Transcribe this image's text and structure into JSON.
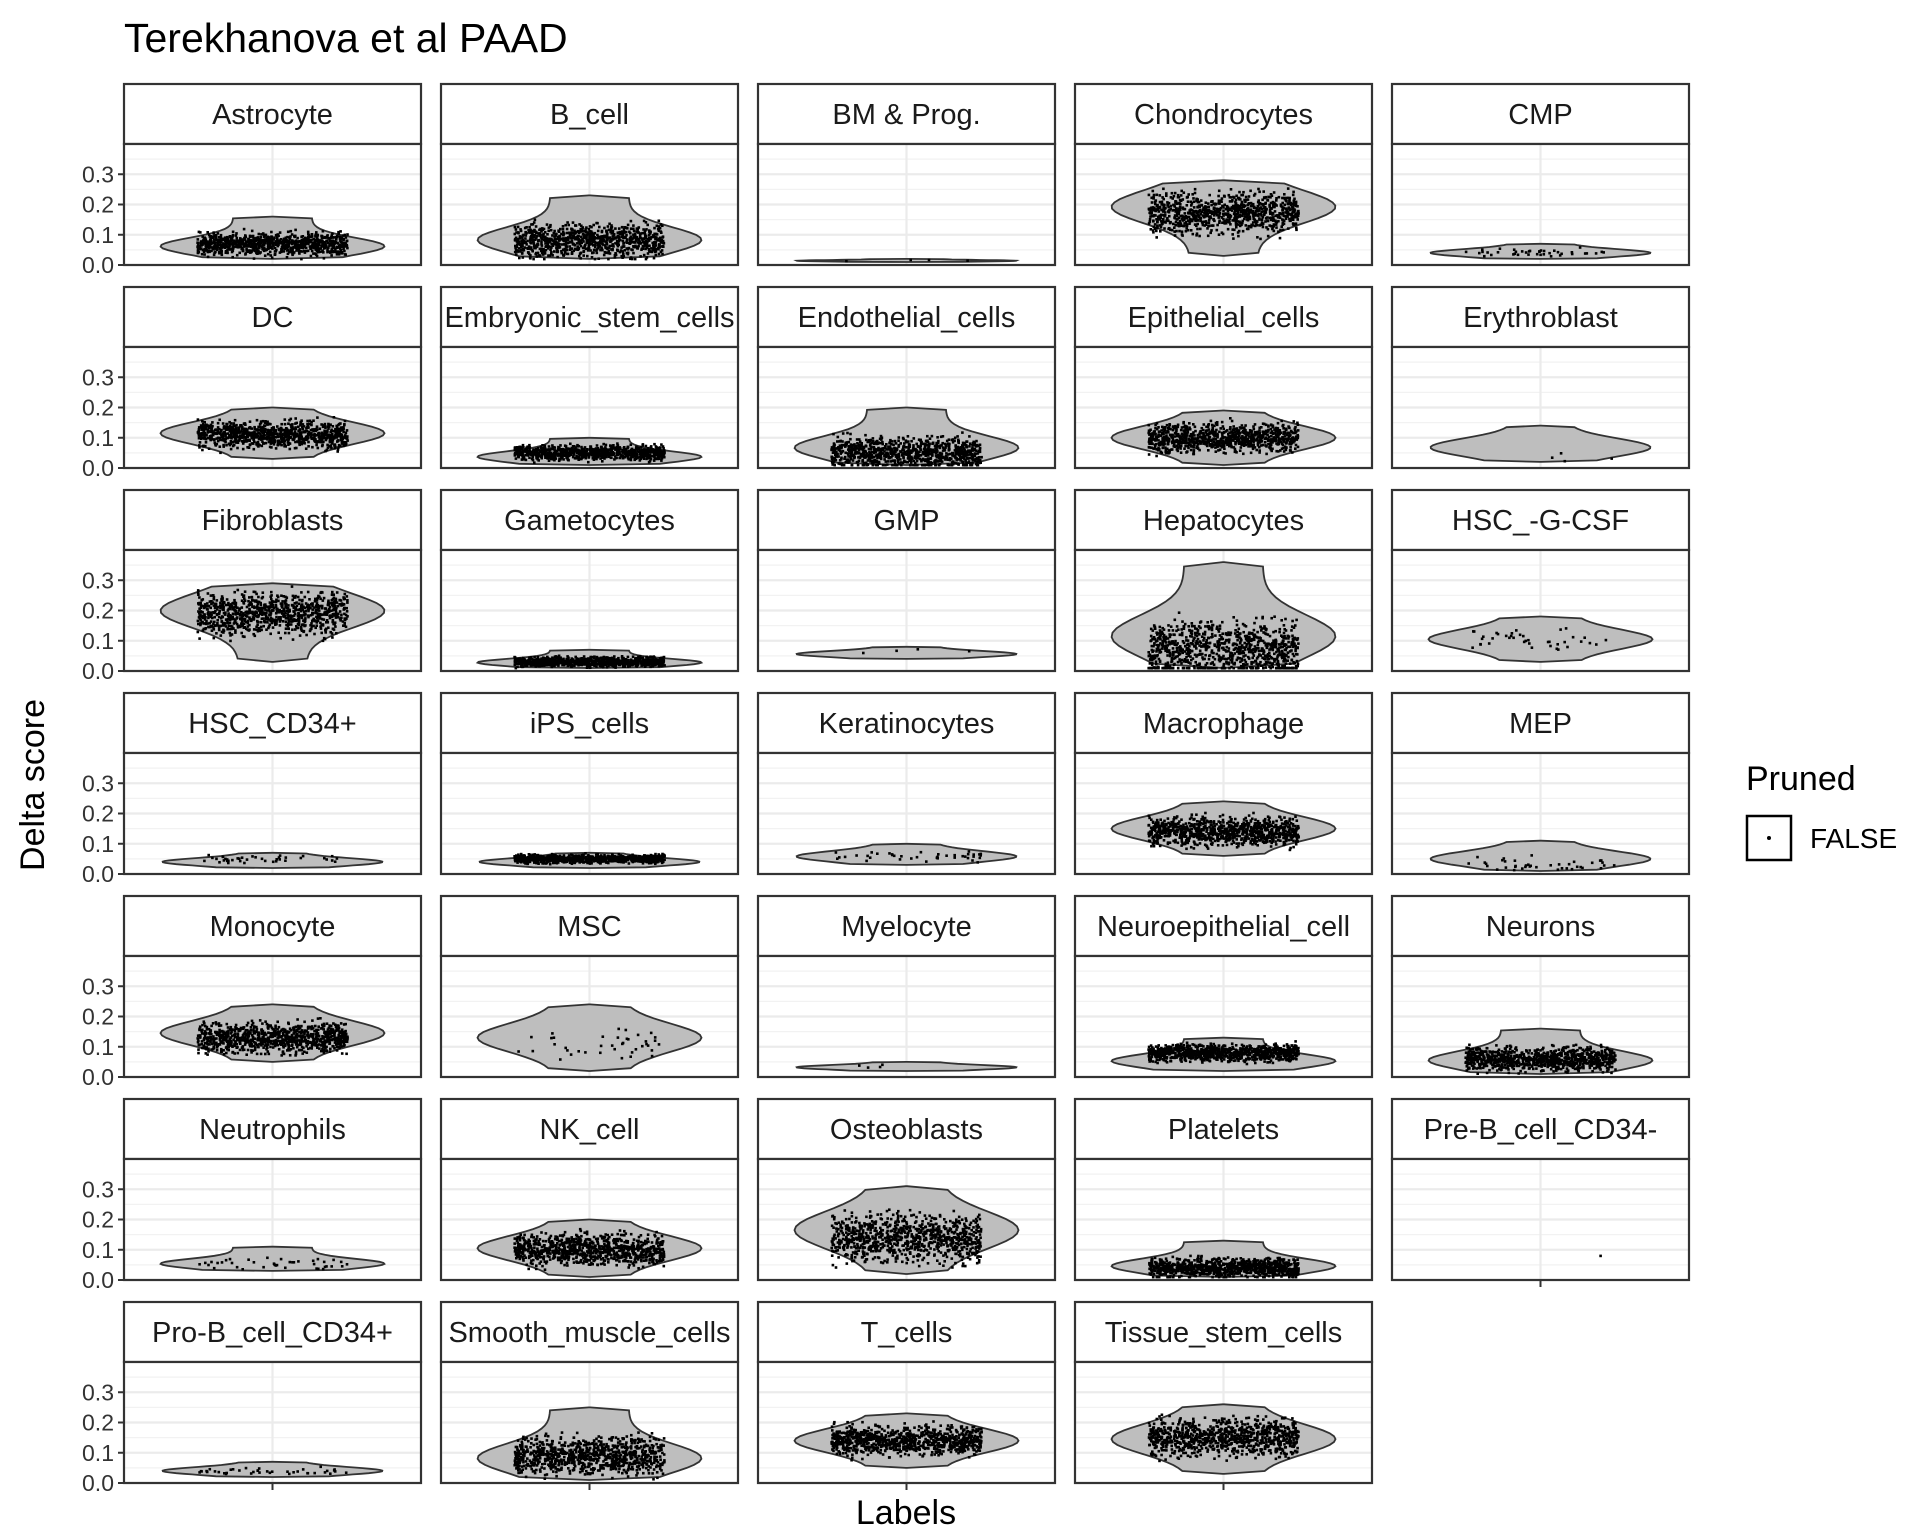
{
  "chart_data": {
    "type": "violin",
    "title": "Terekhanova et al PAAD",
    "xlabel": "Labels",
    "ylabel": "Delta score",
    "ylim": [
      0,
      0.4
    ],
    "yticks": [
      0.0,
      0.1,
      0.2,
      0.3
    ],
    "ytick_labels": [
      "0.0",
      "0.1",
      "0.2",
      "0.3"
    ],
    "facet_layout": {
      "columns": 5,
      "rows": 7
    },
    "grid": true,
    "legend": {
      "title": "Pruned",
      "entries": [
        "FALSE"
      ],
      "placement": "right"
    },
    "colors": {
      "violin_fill": "#bebebe",
      "violin_stroke": "#333333",
      "points": "#000000",
      "grid": "#ebebeb",
      "strip_fill": "#ffffff",
      "panel_border": "#333333"
    },
    "series": [
      {
        "name": "Astrocyte",
        "min": 0.02,
        "max": 0.16,
        "median": 0.07,
        "density": "wide-low",
        "n_points": "many"
      },
      {
        "name": "B_cell",
        "min": 0.02,
        "max": 0.23,
        "median": 0.08,
        "density": "wide-low",
        "n_points": "many"
      },
      {
        "name": "BM & Prog.",
        "min": 0.01,
        "max": 0.02,
        "median": 0.015,
        "density": "flat",
        "n_points": "few"
      },
      {
        "name": "Chondrocytes",
        "min": 0.03,
        "max": 0.28,
        "median": 0.17,
        "density": "wide-high",
        "n_points": "many"
      },
      {
        "name": "CMP",
        "min": 0.02,
        "max": 0.07,
        "median": 0.04,
        "density": "flat",
        "n_points": "some"
      },
      {
        "name": "DC",
        "min": 0.03,
        "max": 0.2,
        "median": 0.11,
        "density": "wide-mid",
        "n_points": "many"
      },
      {
        "name": "Embryonic_stem_cells",
        "min": 0.01,
        "max": 0.1,
        "median": 0.05,
        "density": "wide-low",
        "n_points": "many"
      },
      {
        "name": "Endothelial_cells",
        "min": 0.01,
        "max": 0.2,
        "median": 0.05,
        "density": "wide-low",
        "n_points": "many"
      },
      {
        "name": "Epithelial_cells",
        "min": 0.01,
        "max": 0.19,
        "median": 0.1,
        "density": "wide-mid",
        "n_points": "many"
      },
      {
        "name": "Erythroblast",
        "min": 0.02,
        "max": 0.14,
        "median": 0.04,
        "density": "flat",
        "n_points": "few"
      },
      {
        "name": "Fibroblasts",
        "min": 0.03,
        "max": 0.29,
        "median": 0.19,
        "density": "wide-high",
        "n_points": "many"
      },
      {
        "name": "Gametocytes",
        "min": 0.01,
        "max": 0.07,
        "median": 0.03,
        "density": "wide-low",
        "n_points": "many"
      },
      {
        "name": "GMP",
        "min": 0.04,
        "max": 0.08,
        "median": 0.065,
        "density": "flat",
        "n_points": "few"
      },
      {
        "name": "Hepatocytes",
        "min": 0.01,
        "max": 0.36,
        "median": 0.07,
        "density": "wide-low",
        "n_points": "many"
      },
      {
        "name": "HSC_-G-CSF",
        "min": 0.03,
        "max": 0.18,
        "median": 0.1,
        "density": "wide-mid",
        "n_points": "some"
      },
      {
        "name": "HSC_CD34+",
        "min": 0.02,
        "max": 0.07,
        "median": 0.05,
        "density": "flat",
        "n_points": "some"
      },
      {
        "name": "iPS_cells",
        "min": 0.02,
        "max": 0.07,
        "median": 0.05,
        "density": "flat",
        "n_points": "many"
      },
      {
        "name": "Keratinocytes",
        "min": 0.03,
        "max": 0.1,
        "median": 0.06,
        "density": "flat",
        "n_points": "some"
      },
      {
        "name": "Macrophage",
        "min": 0.06,
        "max": 0.24,
        "median": 0.14,
        "density": "wide-mid",
        "n_points": "many"
      },
      {
        "name": "MEP",
        "min": 0.01,
        "max": 0.11,
        "median": 0.03,
        "density": "flat",
        "n_points": "some"
      },
      {
        "name": "Monocyte",
        "min": 0.05,
        "max": 0.24,
        "median": 0.13,
        "density": "wide-mid",
        "n_points": "many"
      },
      {
        "name": "MSC",
        "min": 0.02,
        "max": 0.24,
        "median": 0.1,
        "density": "wide-mid",
        "n_points": "some"
      },
      {
        "name": "Myelocyte",
        "min": 0.02,
        "max": 0.05,
        "median": 0.035,
        "density": "flat",
        "n_points": "few"
      },
      {
        "name": "Neuroepithelial_cell",
        "min": 0.02,
        "max": 0.13,
        "median": 0.08,
        "density": "wide-low",
        "n_points": "many"
      },
      {
        "name": "Neurons",
        "min": 0.01,
        "max": 0.16,
        "median": 0.06,
        "density": "wide-low",
        "n_points": "many"
      },
      {
        "name": "Neutrophils",
        "min": 0.03,
        "max": 0.11,
        "median": 0.05,
        "density": "wide-low",
        "n_points": "some"
      },
      {
        "name": "NK_cell",
        "min": 0.01,
        "max": 0.2,
        "median": 0.1,
        "density": "wide-mid",
        "n_points": "many"
      },
      {
        "name": "Osteoblasts",
        "min": 0.02,
        "max": 0.31,
        "median": 0.14,
        "density": "wide-mid",
        "n_points": "many"
      },
      {
        "name": "Platelets",
        "min": 0.01,
        "max": 0.13,
        "median": 0.04,
        "density": "wide-low",
        "n_points": "many"
      },
      {
        "name": "Pre-B_cell_CD34-",
        "min": 0.08,
        "max": 0.08,
        "median": 0.08,
        "density": "none",
        "n_points": "one"
      },
      {
        "name": "Pro-B_cell_CD34+",
        "min": 0.02,
        "max": 0.07,
        "median": 0.04,
        "density": "flat",
        "n_points": "some"
      },
      {
        "name": "Smooth_muscle_cells",
        "min": 0.01,
        "max": 0.25,
        "median": 0.09,
        "density": "wide-low",
        "n_points": "many"
      },
      {
        "name": "T_cells",
        "min": 0.05,
        "max": 0.23,
        "median": 0.14,
        "density": "wide-mid",
        "n_points": "many"
      },
      {
        "name": "Tissue_stem_cells",
        "min": 0.03,
        "max": 0.26,
        "median": 0.15,
        "density": "wide-mid",
        "n_points": "many"
      }
    ]
  }
}
